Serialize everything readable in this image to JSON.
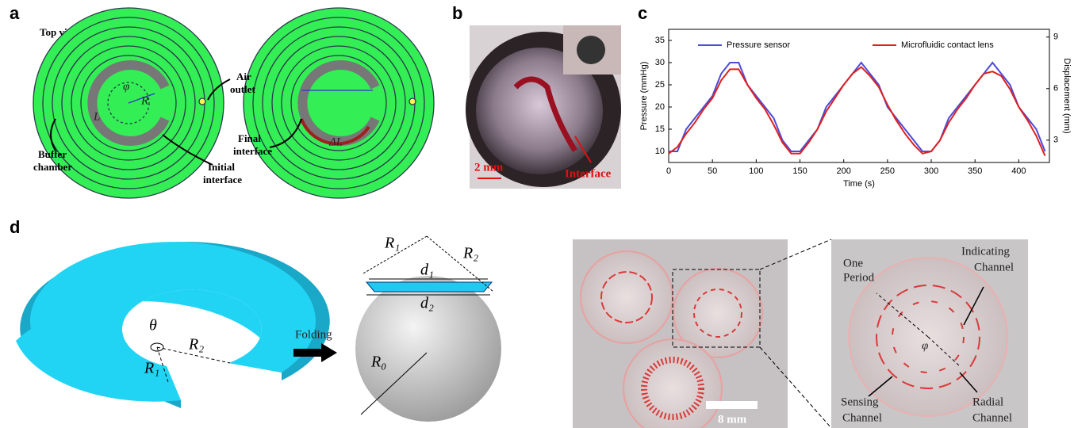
{
  "panel_a": {
    "letter": "a",
    "top_view": "Top view",
    "air_outlet": [
      "Air",
      "outlet"
    ],
    "buffer_chamber": [
      "Buffer",
      "chamber"
    ],
    "initial_interface": [
      "Initial",
      "interface"
    ],
    "final_interface": [
      "Final",
      "interface"
    ],
    "L": "L",
    "phi": "φ",
    "R": "R",
    "delta_L": "ΔL"
  },
  "panel_b": {
    "letter": "b",
    "scale": "2 mm",
    "interface": "Interface"
  },
  "panel_c": {
    "letter": "c"
  },
  "panel_d": {
    "letter": "d",
    "theta": "θ",
    "R1": "R₁",
    "R2": "R₂",
    "folding": "Folding",
    "d1": "d₁",
    "d2": "d₂",
    "R0": "R₀",
    "scale": "8 mm",
    "one_period": [
      "One",
      "Period"
    ],
    "indicating_channel": [
      "Indicating",
      "Channel"
    ],
    "sensing_channel": [
      "Sensing",
      "Channel"
    ],
    "radial_channel": [
      "Radial",
      "Channel"
    ],
    "phi": "φ"
  },
  "chart_data": {
    "type": "line",
    "x_label": "Time (s)",
    "y_label": "Pressure (mmHg)",
    "y2_label": "Displacement (mm)",
    "x": [
      0,
      10,
      20,
      30,
      40,
      50,
      60,
      70,
      80,
      90,
      100,
      110,
      120,
      130,
      140,
      150,
      160,
      170,
      180,
      190,
      200,
      210,
      220,
      230,
      240,
      250,
      260,
      270,
      280,
      290,
      300,
      310,
      320,
      330,
      340,
      350,
      360,
      370,
      380,
      390,
      400,
      410,
      420,
      430
    ],
    "series": [
      {
        "name": "Pressure sensor",
        "color": "#4b4bdc",
        "values": [
          10,
          10,
          15,
          17.5,
          20,
          22.5,
          27.5,
          30,
          30,
          25,
          22.5,
          20,
          17.5,
          12.5,
          10,
          10,
          12.5,
          15,
          20,
          22.5,
          25,
          27.5,
          30,
          27.5,
          25,
          20,
          17.5,
          15,
          12.5,
          10,
          10,
          12.5,
          17.5,
          20,
          22.5,
          25,
          27.5,
          30,
          27.5,
          25,
          20,
          17.5,
          15,
          10
        ]
      },
      {
        "name": "Microfluidic contact lens",
        "color": "#e0201e",
        "values": [
          9.5,
          11,
          14,
          16.5,
          19.5,
          22,
          26,
          28.5,
          28.5,
          25,
          22,
          19.5,
          16,
          12,
          9.5,
          9.5,
          12,
          15,
          19,
          22,
          25,
          27.5,
          29,
          27,
          24.5,
          20.5,
          17,
          14,
          11.5,
          9.5,
          10,
          12.5,
          16.5,
          19.5,
          22,
          25,
          27.5,
          28,
          27,
          24,
          20,
          17,
          13.5,
          9
        ]
      }
    ],
    "xlim": [
      0,
      435
    ],
    "xticks": [
      0,
      50,
      100,
      150,
      200,
      250,
      300,
      350,
      400
    ],
    "ylim": [
      7.5,
      37.5
    ],
    "yticks": [
      10,
      15,
      20,
      25,
      30,
      35
    ],
    "y2lim": [
      1.7,
      9.45
    ],
    "y2ticks": [
      3,
      6,
      9
    ],
    "legend": "top"
  }
}
